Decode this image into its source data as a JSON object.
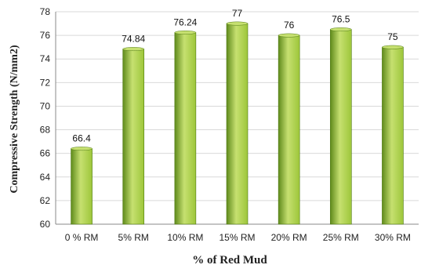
{
  "chart_data": {
    "type": "bar",
    "categories": [
      "0 % RM",
      "5% RM",
      "10% RM",
      "15% RM",
      "20% RM",
      "25% RM",
      "30% RM"
    ],
    "values": [
      66.4,
      74.84,
      76.24,
      77,
      76,
      76.5,
      75
    ],
    "data_labels": [
      "66.4",
      "74.84",
      "76.24",
      "77",
      "76",
      "76.5",
      "75"
    ],
    "title": "",
    "xlabel": "% of Red Mud",
    "ylabel": "Compressive Strength (N/mm2)",
    "ylim": [
      60,
      78
    ],
    "yticks": [
      60,
      62,
      64,
      66,
      68,
      70,
      72,
      74,
      76,
      78
    ],
    "grid": true,
    "legend": "none",
    "colors": {
      "bar_light": "#c6e070",
      "bar_mid": "#9dc63a",
      "bar_dark": "#5f8a1c",
      "bar_edge": "#4f7a12",
      "grid": "#d9d9d9",
      "axis": "#888888"
    }
  }
}
